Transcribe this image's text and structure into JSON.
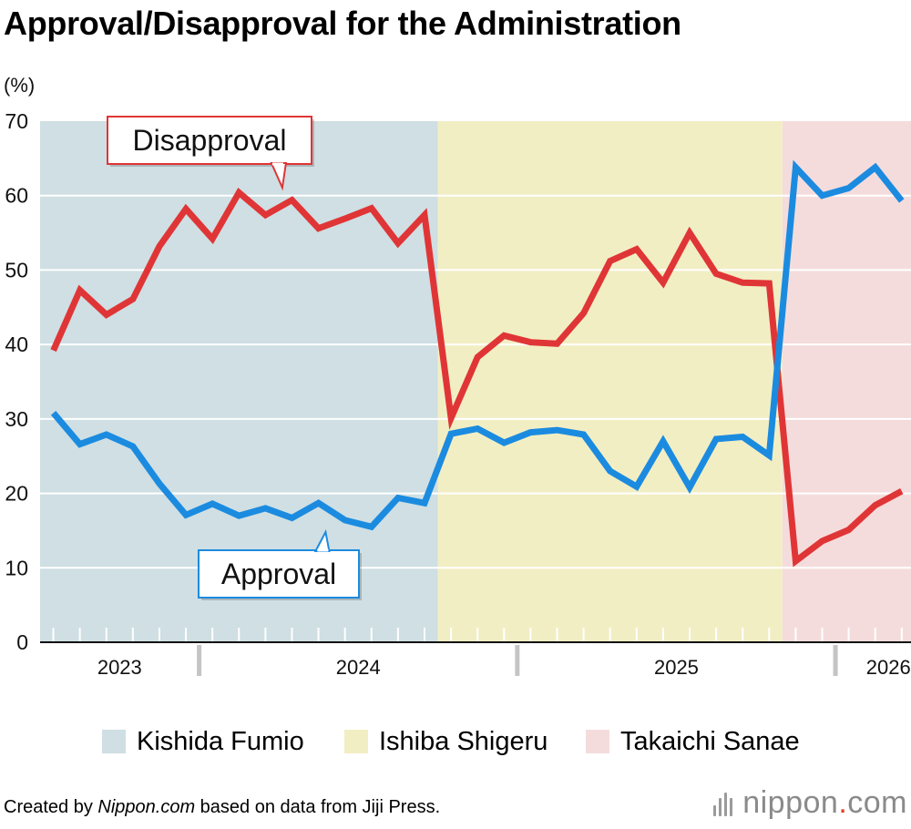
{
  "title": "Approval/Disapproval for the Administration",
  "chart_data": {
    "type": "line",
    "title": "Approval/Disapproval for the Administration",
    "ylabel": "(%)",
    "xlabel": "",
    "ylim": [
      0,
      70
    ],
    "yticks": [
      "0",
      "10",
      "20",
      "30",
      "40",
      "50",
      "60",
      "70"
    ],
    "x_index_range": [
      -0.5,
      32.35
    ],
    "year_labels": [
      {
        "label": "2023",
        "center": 2.5
      },
      {
        "label": "2024",
        "center": 11.5
      },
      {
        "label": "2025",
        "center": 23.5
      },
      {
        "label": "2026",
        "center": 31.5
      }
    ],
    "year_dividers": [
      5.5,
      17.5,
      29.5
    ],
    "periods": [
      {
        "name": "Kishida Fumio",
        "start": -0.5,
        "end": 14.5,
        "color": "#cfdfe3"
      },
      {
        "name": "Ishiba Shigeru",
        "start": 14.5,
        "end": 27.5,
        "color": "#f2eec4"
      },
      {
        "name": "Takaichi Sanae",
        "start": 27.5,
        "end": 32.35,
        "color": "#f5dcdc"
      }
    ],
    "series": [
      {
        "name": "Disapproval",
        "color": "#e03536",
        "values": [
          39.2,
          47.3,
          44.0,
          46.1,
          53.2,
          58.2,
          54.2,
          60.4,
          57.4,
          59.4,
          55.6,
          56.9,
          58.3,
          53.6,
          57.4,
          30.1,
          38.3,
          41.2,
          40.3,
          40.1,
          44.2,
          51.2,
          52.8,
          48.3,
          55.0,
          49.5,
          48.3,
          48.2,
          10.9,
          13.6,
          15.1,
          18.4,
          20.3
        ]
      },
      {
        "name": "Approval",
        "color": "#1b8be0",
        "values": [
          30.8,
          26.6,
          27.9,
          26.3,
          21.3,
          17.1,
          18.6,
          17.0,
          18.0,
          16.7,
          18.7,
          16.4,
          15.5,
          19.4,
          18.7,
          28.0,
          28.7,
          26.8,
          28.2,
          28.5,
          27.9,
          23.0,
          20.9,
          27.0,
          20.8,
          27.3,
          27.6,
          25.1,
          63.8,
          60.0,
          61.0,
          63.8,
          59.3
        ]
      }
    ],
    "annotations": [
      {
        "text": "Disapproval",
        "series": "Disapproval",
        "pointer_index": 8.5
      },
      {
        "text": "Approval",
        "series": "Approval",
        "pointer_index": 10.2
      }
    ],
    "legend": [
      {
        "label": "Kishida Fumio",
        "color": "#cfdfe3"
      },
      {
        "label": "Ishiba Shigeru",
        "color": "#f2eec4"
      },
      {
        "label": "Takaichi Sanae",
        "color": "#f5dcdc"
      }
    ]
  },
  "footer": {
    "prefix": "Created by ",
    "source_name": "Nippon.com",
    "suffix": " based on data from Jiji Press."
  },
  "logo": {
    "name": "nippon",
    "dot": ".",
    "tld": "com"
  }
}
